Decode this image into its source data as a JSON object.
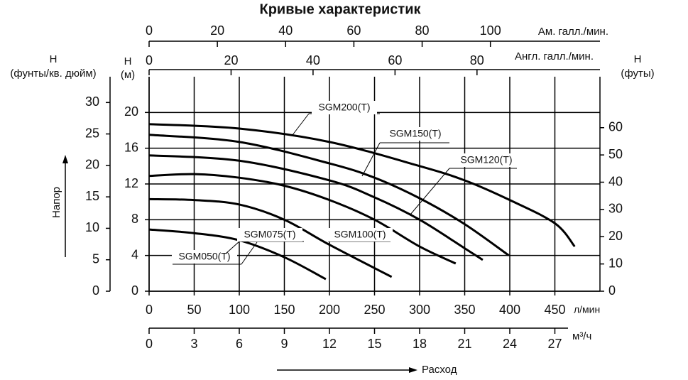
{
  "chart_data": {
    "type": "line",
    "title": "Кривые характеристик",
    "xlabel": "Расход",
    "ylabel": "Напор",
    "xunit": "л/мин",
    "yunit": [
      "H",
      "(м)"
    ],
    "xlim": [
      0,
      500
    ],
    "xticks": [
      0,
      50,
      100,
      150,
      200,
      250,
      300,
      350,
      400,
      450
    ],
    "ylim": [
      0,
      24
    ],
    "yticks": [
      0,
      4,
      8,
      12,
      16,
      20
    ],
    "grid": true,
    "series": [
      {
        "name": "SGM050(T)",
        "color": "#000000",
        "x": [
          0,
          50,
          100,
          150,
          196
        ],
        "values": [
          6.9,
          6.5,
          5.7,
          3.8,
          1.35
        ]
      },
      {
        "name": "SGM075(T)",
        "color": "#000000",
        "x": [
          0,
          50,
          100,
          150,
          200,
          269
        ],
        "values": [
          10.3,
          10.2,
          9.7,
          8.0,
          5.2,
          1.6
        ]
      },
      {
        "name": "SGM100(T)",
        "color": "#000000",
        "x": [
          0,
          50,
          100,
          150,
          200,
          250,
          300,
          340
        ],
        "values": [
          12.9,
          13.1,
          12.7,
          11.8,
          10.2,
          8.0,
          5.0,
          3.1
        ]
      },
      {
        "name": "SGM120(T)",
        "color": "#000000",
        "x": [
          0,
          100,
          200,
          250,
          300,
          350,
          370
        ],
        "values": [
          15.2,
          14.6,
          12.4,
          10.5,
          8.0,
          4.8,
          3.5
        ]
      },
      {
        "name": "SGM150(T)",
        "color": "#000000",
        "x": [
          0,
          100,
          200,
          250,
          300,
          350,
          399
        ],
        "values": [
          17.5,
          16.7,
          14.3,
          12.7,
          10.4,
          7.5,
          4.0
        ]
      },
      {
        "name": "SGM200(T)",
        "color": "#000000",
        "x": [
          0,
          100,
          200,
          300,
          350,
          400,
          450,
          472
        ],
        "values": [
          18.7,
          18.2,
          16.7,
          14.0,
          12.4,
          10.2,
          7.6,
          5.0
        ]
      }
    ],
    "axes": [
      {
        "position": "top",
        "label": [
          "Ам. галл./мин."
        ],
        "lim": [
          0,
          132.1
        ],
        "ticks": [
          0,
          20,
          40,
          60,
          80,
          100
        ]
      },
      {
        "position": "top2",
        "label": [
          "Англ. галл./мин."
        ],
        "lim": [
          0,
          110
        ],
        "ticks": [
          0,
          20,
          40,
          60,
          80
        ]
      },
      {
        "position": "bottom2",
        "label": [
          "м³/ч"
        ],
        "lim": [
          0,
          30
        ],
        "ticks": [
          0,
          3,
          6,
          9,
          12,
          15,
          18,
          21,
          24,
          27
        ]
      },
      {
        "position": "left2",
        "label": [
          "H",
          "(фунты/кв. дюйм)"
        ],
        "lim": [
          0,
          34.1
        ],
        "ticks": [
          0,
          5,
          10,
          15,
          20,
          25,
          30
        ]
      },
      {
        "position": "right",
        "label": [
          "H",
          "(футы)"
        ],
        "lim": [
          0,
          78.7
        ],
        "ticks": [
          0,
          10,
          20,
          30,
          40,
          50,
          60
        ]
      }
    ]
  }
}
